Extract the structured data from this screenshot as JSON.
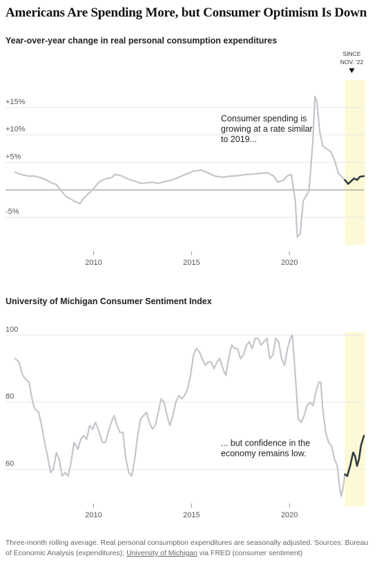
{
  "title": "Americans Are Spending More, but Consumer Optimism Is Down",
  "colors": {
    "history": "#c2c6ca",
    "recent": "#2e3b40",
    "highlight": "#fdf9d6",
    "zero": "#888888",
    "grid": "#e6e6e6"
  },
  "chart_data": [
    {
      "type": "line",
      "title": "Year-over-year change in real personal consumption expenditures",
      "ylim": [
        -10,
        20
      ],
      "yticks": [
        {
          "v": 15,
          "label": "+15%"
        },
        {
          "v": 10,
          "label": "+10%"
        },
        {
          "v": 5,
          "label": "+5%"
        },
        {
          "v": -5,
          "label": "-5%"
        }
      ],
      "xlim": [
        2006.0,
        2023.8
      ],
      "xticks": [
        {
          "v": 2010,
          "label": "2010"
        },
        {
          "v": 2015,
          "label": "2015"
        },
        {
          "v": 2020,
          "label": "2020"
        }
      ],
      "highlight": {
        "start": 2022.83,
        "label_line1": "SINCE",
        "label_line2": "NOV. '22"
      },
      "annotation": {
        "lines": [
          "Consumer spending is",
          "growing at a rate similar",
          "to 2019..."
        ],
        "x": 2016.5,
        "y": 12.5
      },
      "series": [
        {
          "values": [
            [
              2006.0,
              3.2
            ],
            [
              2006.3,
              2.8
            ],
            [
              2006.7,
              2.5
            ],
            [
              2007.0,
              2.5
            ],
            [
              2007.3,
              2.2
            ],
            [
              2007.6,
              1.8
            ],
            [
              2007.9,
              1.2
            ],
            [
              2008.1,
              1.0
            ],
            [
              2008.3,
              0.0
            ],
            [
              2008.6,
              -1.2
            ],
            [
              2008.9,
              -1.8
            ],
            [
              2009.1,
              -2.2
            ],
            [
              2009.3,
              -2.5
            ],
            [
              2009.5,
              -1.5
            ],
            [
              2009.8,
              -0.5
            ],
            [
              2010.0,
              0.2
            ],
            [
              2010.3,
              1.5
            ],
            [
              2010.6,
              2.0
            ],
            [
              2010.9,
              2.2
            ],
            [
              2011.1,
              2.8
            ],
            [
              2011.4,
              2.6
            ],
            [
              2011.8,
              1.9
            ],
            [
              2012.1,
              1.6
            ],
            [
              2012.4,
              1.2
            ],
            [
              2012.7,
              1.3
            ],
            [
              2013.0,
              1.4
            ],
            [
              2013.3,
              1.2
            ],
            [
              2013.6,
              1.5
            ],
            [
              2014.0,
              1.8
            ],
            [
              2014.3,
              2.2
            ],
            [
              2014.6,
              2.7
            ],
            [
              2014.9,
              3.1
            ],
            [
              2015.1,
              3.4
            ],
            [
              2015.5,
              3.6
            ],
            [
              2015.9,
              3.0
            ],
            [
              2016.2,
              2.5
            ],
            [
              2016.6,
              2.3
            ],
            [
              2017.0,
              2.5
            ],
            [
              2017.4,
              2.6
            ],
            [
              2017.8,
              2.8
            ],
            [
              2018.2,
              2.9
            ],
            [
              2018.5,
              3.0
            ],
            [
              2018.9,
              3.1
            ],
            [
              2019.2,
              2.5
            ],
            [
              2019.4,
              1.4
            ],
            [
              2019.7,
              1.8
            ],
            [
              2019.9,
              2.6
            ],
            [
              2020.1,
              2.8
            ],
            [
              2020.3,
              -2.0
            ],
            [
              2020.4,
              -8.6
            ],
            [
              2020.55,
              -8.0
            ],
            [
              2020.7,
              -2.0
            ],
            [
              2020.9,
              -0.8
            ],
            [
              2021.0,
              0.0
            ],
            [
              2021.2,
              9.0
            ],
            [
              2021.3,
              17.0
            ],
            [
              2021.4,
              16.0
            ],
            [
              2021.55,
              10.5
            ],
            [
              2021.7,
              8.0
            ],
            [
              2021.9,
              7.5
            ],
            [
              2022.1,
              7.0
            ],
            [
              2022.3,
              5.5
            ],
            [
              2022.5,
              3.0
            ],
            [
              2022.83,
              1.8
            ]
          ]
        },
        {
          "values": [
            [
              2022.83,
              1.8
            ],
            [
              2023.0,
              1.1
            ],
            [
              2023.15,
              1.6
            ],
            [
              2023.3,
              2.1
            ],
            [
              2023.45,
              1.8
            ],
            [
              2023.6,
              2.4
            ],
            [
              2023.8,
              2.5
            ]
          ]
        }
      ]
    },
    {
      "type": "line",
      "title": "University of Michigan Consumer Sentiment Index",
      "ylim": [
        49,
        101
      ],
      "yticks": [
        {
          "v": 100,
          "label": "100"
        },
        {
          "v": 80,
          "label": "80"
        },
        {
          "v": 60,
          "label": "60"
        }
      ],
      "xlim": [
        2006.0,
        2023.8
      ],
      "xticks": [
        {
          "v": 2010,
          "label": "2010"
        },
        {
          "v": 2015,
          "label": "2015"
        },
        {
          "v": 2020,
          "label": "2020"
        }
      ],
      "highlight": {
        "start": 2022.83
      },
      "annotation": {
        "lines": [
          "... but confidence in the",
          "economy remains low."
        ],
        "x": 2016.5,
        "y": 67
      },
      "series": [
        {
          "values": [
            [
              2006.0,
              93
            ],
            [
              2006.2,
              92
            ],
            [
              2006.35,
              88.5
            ],
            [
              2006.5,
              87
            ],
            [
              2006.7,
              86
            ],
            [
              2006.9,
              80
            ],
            [
              2007.0,
              78
            ],
            [
              2007.2,
              77
            ],
            [
              2007.35,
              73
            ],
            [
              2007.5,
              68
            ],
            [
              2007.65,
              64
            ],
            [
              2007.8,
              59
            ],
            [
              2007.95,
              60
            ],
            [
              2008.1,
              65
            ],
            [
              2008.25,
              63
            ],
            [
              2008.4,
              58
            ],
            [
              2008.55,
              59
            ],
            [
              2008.7,
              58
            ],
            [
              2008.85,
              62
            ],
            [
              2009.0,
              68
            ],
            [
              2009.2,
              66
            ],
            [
              2009.35,
              69
            ],
            [
              2009.5,
              70
            ],
            [
              2009.65,
              69
            ],
            [
              2009.8,
              73
            ],
            [
              2009.95,
              72
            ],
            [
              2010.1,
              74
            ],
            [
              2010.3,
              71
            ],
            [
              2010.45,
              68
            ],
            [
              2010.6,
              68
            ],
            [
              2010.75,
              71
            ],
            [
              2010.9,
              74
            ],
            [
              2011.05,
              76
            ],
            [
              2011.2,
              73
            ],
            [
              2011.35,
              71
            ],
            [
              2011.5,
              71
            ],
            [
              2011.65,
              63
            ],
            [
              2011.8,
              59
            ],
            [
              2011.95,
              58
            ],
            [
              2012.1,
              63
            ],
            [
              2012.25,
              70
            ],
            [
              2012.4,
              75
            ],
            [
              2012.55,
              76
            ],
            [
              2012.7,
              77
            ],
            [
              2012.85,
              74
            ],
            [
              2013.0,
              72
            ],
            [
              2013.15,
              73
            ],
            [
              2013.3,
              77
            ],
            [
              2013.45,
              81
            ],
            [
              2013.6,
              80
            ],
            [
              2013.75,
              76
            ],
            [
              2013.9,
              73
            ],
            [
              2014.05,
              76
            ],
            [
              2014.2,
              80
            ],
            [
              2014.35,
              82
            ],
            [
              2014.5,
              81
            ],
            [
              2014.65,
              82
            ],
            [
              2014.8,
              84
            ],
            [
              2014.95,
              88
            ],
            [
              2015.1,
              94
            ],
            [
              2015.25,
              96
            ],
            [
              2015.4,
              95
            ],
            [
              2015.55,
              93
            ],
            [
              2015.7,
              91
            ],
            [
              2015.85,
              92
            ],
            [
              2016.0,
              92
            ],
            [
              2016.15,
              90
            ],
            [
              2016.3,
              92
            ],
            [
              2016.45,
              93
            ],
            [
              2016.6,
              90
            ],
            [
              2016.75,
              88
            ],
            [
              2016.9,
              93
            ],
            [
              2017.05,
              97
            ],
            [
              2017.2,
              96
            ],
            [
              2017.35,
              96
            ],
            [
              2017.5,
              93
            ],
            [
              2017.65,
              94
            ],
            [
              2017.8,
              97
            ],
            [
              2017.95,
              98
            ],
            [
              2018.1,
              96
            ],
            [
              2018.25,
              99
            ],
            [
              2018.4,
              99
            ],
            [
              2018.55,
              97
            ],
            [
              2018.7,
              98
            ],
            [
              2018.85,
              99
            ],
            [
              2019.0,
              93
            ],
            [
              2019.15,
              94
            ],
            [
              2019.3,
              99
            ],
            [
              2019.45,
              98
            ],
            [
              2019.6,
              93
            ],
            [
              2019.75,
              91
            ],
            [
              2019.9,
              96
            ],
            [
              2020.05,
              99
            ],
            [
              2020.15,
              100
            ],
            [
              2020.3,
              88
            ],
            [
              2020.45,
              75
            ],
            [
              2020.6,
              74
            ],
            [
              2020.75,
              76
            ],
            [
              2020.9,
              79
            ],
            [
              2021.05,
              80
            ],
            [
              2021.2,
              79
            ],
            [
              2021.35,
              83
            ],
            [
              2021.5,
              86
            ],
            [
              2021.6,
              86
            ],
            [
              2021.7,
              78
            ],
            [
              2021.85,
              71
            ],
            [
              2022.0,
              68
            ],
            [
              2022.15,
              67
            ],
            [
              2022.3,
              63
            ],
            [
              2022.45,
              61
            ],
            [
              2022.55,
              55
            ],
            [
              2022.65,
              52
            ],
            [
              2022.75,
              55
            ],
            [
              2022.83,
              58.5
            ]
          ]
        },
        {
          "values": [
            [
              2022.83,
              58.5
            ],
            [
              2022.95,
              58
            ],
            [
              2023.1,
              61
            ],
            [
              2023.25,
              65
            ],
            [
              2023.35,
              64
            ],
            [
              2023.45,
              61
            ],
            [
              2023.55,
              63
            ],
            [
              2023.65,
              67
            ],
            [
              2023.8,
              70
            ]
          ]
        }
      ]
    }
  ],
  "source_note": {
    "part1": "Three-month rolling average. Real personal consumption expenditures are seasonally adjusted. Sources: Bureau of Economic Analysis (expenditures); ",
    "link": "University of Michigan",
    "part2": " via FRED (consumer sentiment)"
  }
}
